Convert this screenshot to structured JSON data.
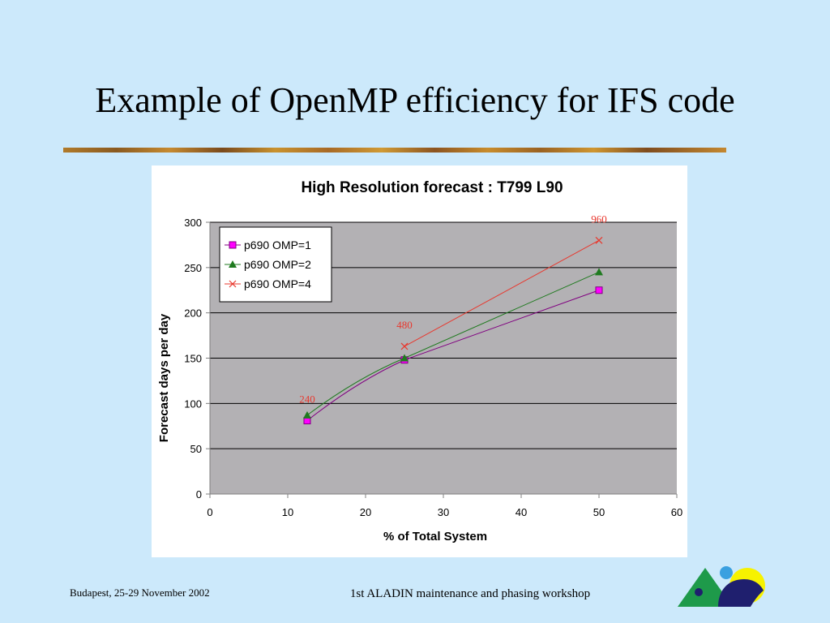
{
  "slide": {
    "title": "Example of OpenMP efficiency for IFS code",
    "footer_left": "Budapest, 25-29 November 2002",
    "footer_center": "1st ALADIN maintenance and phasing workshop"
  },
  "colors": {
    "background": "#cce9fb",
    "plot_area": "#b3b1b4",
    "series_omp1_line": "#800080",
    "series_omp1_marker": "#ff00ff",
    "series_omp2": "#1f7a1f",
    "series_omp4": "#e8382e",
    "annotation": "#e8382e",
    "logo_green": "#1e9a4a",
    "logo_navy": "#1f1f6e",
    "logo_yellow": "#f7f200"
  },
  "chart_data": {
    "type": "line",
    "title": "High Resolution forecast : T799 L90",
    "xlabel": "% of Total System",
    "ylabel": "Forecast days per day",
    "xlim": [
      0,
      60
    ],
    "ylim": [
      0,
      300
    ],
    "xticks": [
      0,
      10,
      20,
      30,
      40,
      50,
      60
    ],
    "yticks": [
      0,
      50,
      100,
      150,
      200,
      250,
      300
    ],
    "grid": "horizontal",
    "legend_position": "top-left",
    "series": [
      {
        "name": "p690 OMP=1",
        "marker": "square",
        "x": [
          12.5,
          25,
          50
        ],
        "y": [
          81,
          148,
          225
        ]
      },
      {
        "name": "p690 OMP=2",
        "marker": "triangle",
        "x": [
          12.5,
          25,
          50
        ],
        "y": [
          87,
          150,
          245
        ]
      },
      {
        "name": "p690 OMP=4",
        "marker": "x",
        "x": [
          25,
          50
        ],
        "y": [
          163,
          280
        ]
      }
    ],
    "annotations": [
      {
        "text": "240",
        "x": 12.5,
        "y": 81
      },
      {
        "text": "480",
        "x": 25,
        "y": 163
      },
      {
        "text": "960",
        "x": 50,
        "y": 280
      }
    ]
  }
}
